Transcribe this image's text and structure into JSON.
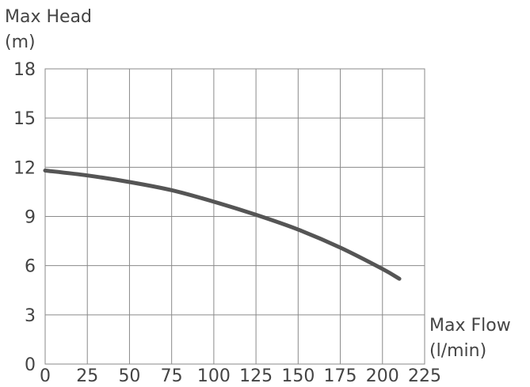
{
  "chart_data": {
    "type": "line",
    "ylabel_line1": "Max Head",
    "ylabel_line2": "(m)",
    "xlabel_line1": "Max Flow",
    "xlabel_line2": "(l/min)",
    "xlim": [
      0,
      225
    ],
    "ylim": [
      0,
      18
    ],
    "xticks": [
      0,
      25,
      50,
      75,
      100,
      125,
      150,
      175,
      200,
      225
    ],
    "yticks": [
      0,
      3,
      6,
      9,
      12,
      15,
      18
    ],
    "grid": true,
    "series": [
      {
        "color": "#555555",
        "x": [
          0,
          25,
          50,
          75,
          100,
          125,
          150,
          175,
          200,
          210
        ],
        "y": [
          11.8,
          11.5,
          11.1,
          10.6,
          9.9,
          9.1,
          8.2,
          7.1,
          5.8,
          5.2
        ]
      }
    ]
  }
}
